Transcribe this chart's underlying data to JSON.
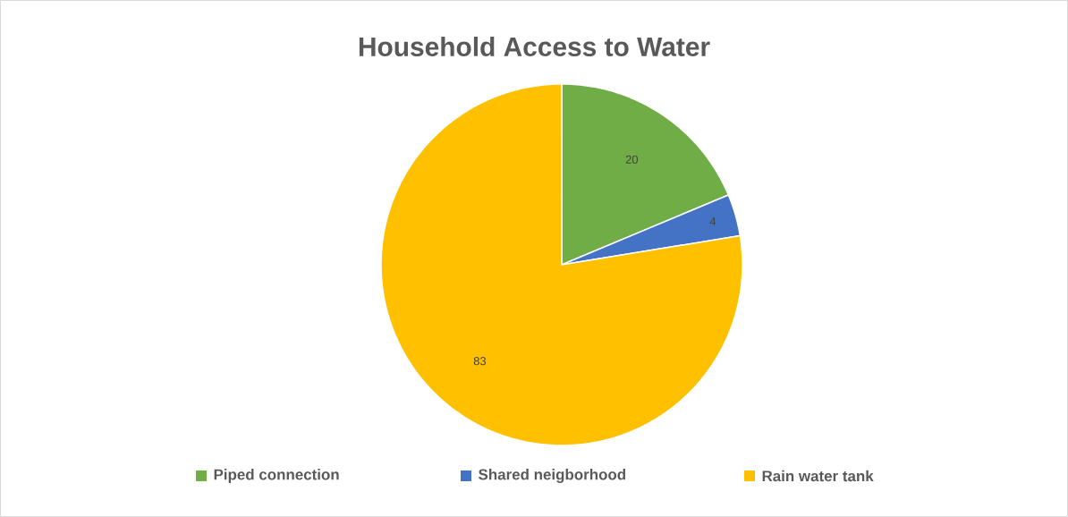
{
  "chart_data": {
    "type": "pie",
    "title": "Household Access to Water",
    "categories": [
      "Piped connection",
      "Shared neigborhood",
      "Rain water tank"
    ],
    "values": [
      20,
      4,
      83
    ],
    "colors": [
      "#70ad47",
      "#4472c4",
      "#ffc000"
    ],
    "data_labels": true,
    "legend": "bottom"
  }
}
